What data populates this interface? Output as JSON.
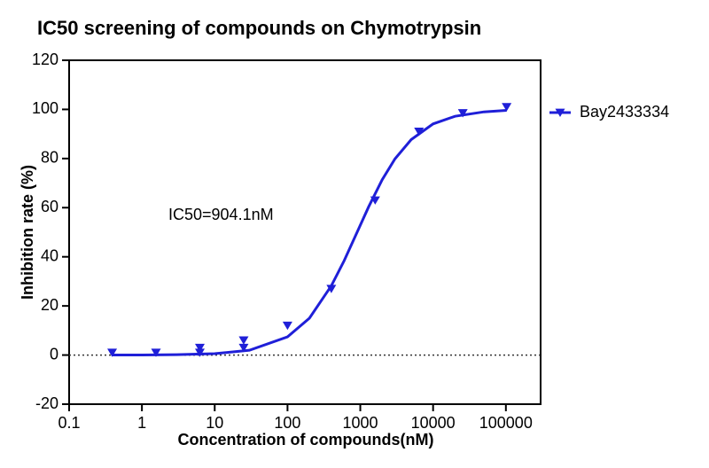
{
  "chart_data": {
    "type": "dose-response",
    "title": "IC50 screening of compounds on Chymotrypsin",
    "x_label": "Concentration of compounds(nM)",
    "y_label": "Inhibition rate (%)",
    "annotation": "IC50=904.1nM",
    "x_scale": "log",
    "xlim": [
      0.1,
      300000
    ],
    "xticks": [
      0.1,
      1,
      10,
      100,
      1000,
      10000,
      100000
    ],
    "ylim": [
      -20,
      120
    ],
    "yticks": [
      -20,
      0,
      20,
      40,
      60,
      80,
      100,
      120
    ],
    "hline": 0,
    "legend": "right",
    "series": [
      {
        "name": "Bay2433334",
        "color": "#1f1fd8",
        "x": [
          0.39,
          1.56,
          6.25,
          6.25,
          25,
          25,
          100,
          400,
          1600,
          6400,
          25600,
          102400
        ],
        "values": [
          1,
          1,
          3,
          1,
          6,
          3,
          12,
          27,
          63,
          91,
          98.5,
          101
        ],
        "fit_x": [
          0.39,
          1,
          3,
          10,
          30,
          100,
          200,
          400,
          600,
          904,
          1300,
          2000,
          3000,
          5000,
          10000,
          20000,
          50000,
          102400
        ],
        "fit_values": [
          0.01,
          0.04,
          0.14,
          0.56,
          1.95,
          7.4,
          15,
          28.2,
          38.4,
          50,
          60.3,
          71.4,
          79.9,
          87.7,
          94.1,
          97.2,
          99,
          99.6
        ]
      }
    ]
  }
}
